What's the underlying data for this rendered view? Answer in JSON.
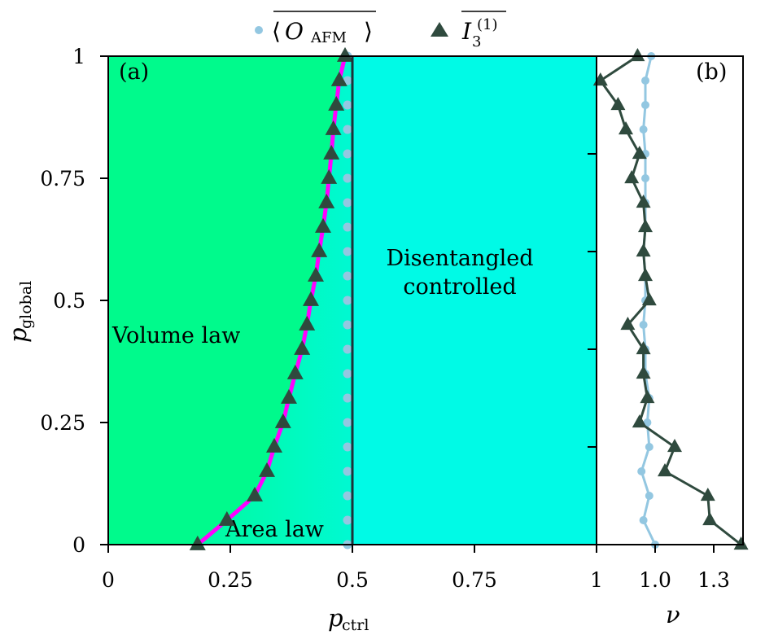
{
  "chart_data": [
    {
      "panel": "(a)",
      "type": "line",
      "xlabel": "p_ctrl",
      "ylabel": "p_global",
      "xlim": [
        0,
        1
      ],
      "ylim": [
        0,
        1
      ],
      "xticks": [
        "0",
        "0.25",
        "0.5",
        "0.75",
        "1"
      ],
      "yticks": [
        "0",
        "0.25",
        "0.5",
        "0.75",
        "1"
      ],
      "regions": {
        "volume": "Volume law",
        "area": "Area law",
        "disentangled_line1": "Disentangled",
        "disentangled_line2": "controlled"
      },
      "p_global": [
        0,
        0.05,
        0.1,
        0.15,
        0.2,
        0.25,
        0.3,
        0.35,
        0.4,
        0.45,
        0.5,
        0.55,
        0.6,
        0.65,
        0.7,
        0.75,
        0.8,
        0.85,
        0.9,
        0.95,
        1.0
      ],
      "series": [
        {
          "name": "I3_bar",
          "marker": "triangle",
          "p_ctrl": [
            0.183,
            0.243,
            0.3,
            0.325,
            0.34,
            0.358,
            0.37,
            0.383,
            0.397,
            0.407,
            0.415,
            0.425,
            0.432,
            0.44,
            0.447,
            0.452,
            0.457,
            0.461,
            0.467,
            0.473,
            0.485
          ]
        },
        {
          "name": "O_AFM_bar",
          "marker": "circle",
          "p_ctrl": [
            0.49,
            0.49,
            0.49,
            0.49,
            0.49,
            0.49,
            0.49,
            0.49,
            0.49,
            0.49,
            0.49,
            0.49,
            0.49,
            0.49,
            0.49,
            0.49,
            0.49,
            0.49,
            0.49,
            0.49,
            0.49
          ]
        }
      ]
    },
    {
      "panel": "(b)",
      "type": "line",
      "xlabel": "ν",
      "xticks": [
        "1.0",
        "1.3"
      ],
      "xlim": [
        0.7,
        1.45
      ],
      "p_global": [
        0,
        0.05,
        0.1,
        0.15,
        0.2,
        0.25,
        0.3,
        0.35,
        0.4,
        0.45,
        0.5,
        0.55,
        0.6,
        0.65,
        0.7,
        0.75,
        0.8,
        0.85,
        0.9,
        0.95,
        1.0
      ],
      "series": [
        {
          "name": "O_AFM_bar",
          "marker": "circle",
          "nu": [
            1.0,
            0.94,
            0.97,
            0.93,
            0.97,
            0.96,
            0.97,
            0.95,
            0.95,
            0.94,
            0.95,
            0.95,
            0.94,
            0.95,
            0.95,
            0.95,
            0.95,
            0.94,
            0.95,
            0.95,
            0.98
          ]
        },
        {
          "name": "I3_bar",
          "marker": "triangle",
          "nu": [
            1.44,
            1.28,
            1.27,
            1.05,
            1.1,
            0.92,
            0.96,
            0.94,
            0.94,
            0.86,
            0.97,
            0.95,
            0.94,
            0.95,
            0.94,
            0.88,
            0.92,
            0.85,
            0.81,
            0.72,
            0.91
          ]
        }
      ]
    }
  ],
  "legend": {
    "label1_symbol": "O",
    "label1_sub": "AFM",
    "label2_symbol": "I",
    "label2_sub": "3",
    "label2_sup": "(1)"
  },
  "panel_labels": {
    "a": "(a)",
    "b": "(b)"
  },
  "axis_labels": {
    "x_main": "p",
    "x_main_sub": "ctrl",
    "y": "p",
    "y_sub": "global",
    "x_right": "ν"
  },
  "colors": {
    "volume_fill": "#00fa8c",
    "disentangled_fill": "#00fae6",
    "area_fill_left": "#00fb9f",
    "area_fill_right": "#00f9d2",
    "triangle": "#2f4a3e",
    "magenta": "#ff00ff",
    "circle": "#93c7e1",
    "boundary": "#1e3038"
  }
}
